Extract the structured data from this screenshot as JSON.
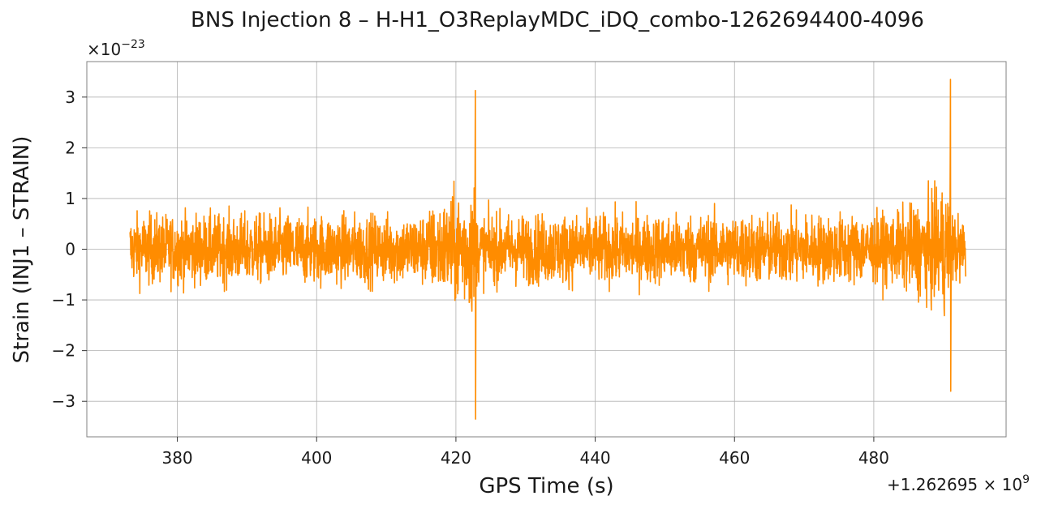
{
  "chart_data": {
    "type": "line",
    "title": "BNS Injection 8 – H-H1_O3ReplayMDC_iDQ_combo-1262694400-4096",
    "xlabel": "GPS Time (s)",
    "ylabel": "Strain (INJ1 – STRAIN)",
    "x_offset_label": "+1.262695",
    "x_offset_exponent": "9",
    "y_scale_label": "×10",
    "y_scale_exponent": "−23",
    "xlim": [
      367,
      499
    ],
    "ylim": [
      -3.7,
      3.7
    ],
    "x_ticks": [
      380,
      400,
      420,
      440,
      460,
      480
    ],
    "y_ticks": [
      -3,
      -2,
      -1,
      0,
      1,
      2,
      3
    ],
    "y_tick_labels": [
      "−3",
      "−2",
      "−1",
      "0",
      "1",
      "2",
      "3"
    ],
    "grid": true,
    "series": [
      {
        "color": "#ff8c00",
        "x_range": [
          373.2,
          493.2
        ],
        "baseline_envelope": 0.6,
        "events": [
          {
            "x": 422.8,
            "peak_max": 3.13,
            "peak_min": -3.35
          },
          {
            "x": 491.0,
            "peak_max": 3.35,
            "peak_min": -2.8
          }
        ]
      }
    ]
  }
}
